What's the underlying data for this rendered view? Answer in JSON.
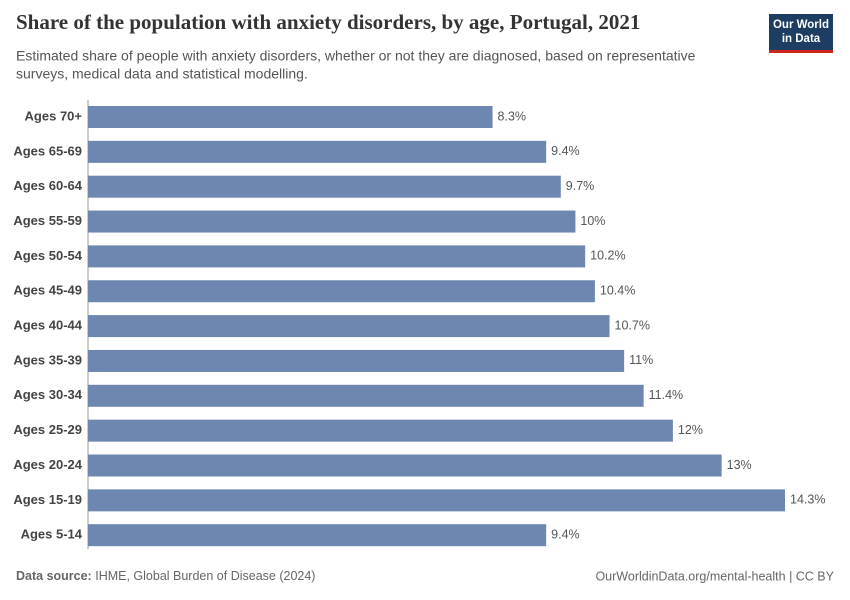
{
  "chart_data": {
    "type": "bar",
    "orientation": "horizontal",
    "title": "Share of the population with anxiety disorders, by age, Portugal, 2021",
    "subtitle": [
      "Estimated share of people with anxiety disorders, whether or not they are diagnosed, based on representative",
      "surveys, medical data and statistical modelling."
    ],
    "categories": [
      "Ages 70+",
      "Ages 65-69",
      "Ages 60-64",
      "Ages 55-59",
      "Ages 50-54",
      "Ages 45-49",
      "Ages 40-44",
      "Ages 35-39",
      "Ages 30-34",
      "Ages 25-29",
      "Ages 20-24",
      "Ages 15-19",
      "Ages 5-14"
    ],
    "values": [
      8.3,
      9.4,
      9.7,
      10,
      10.2,
      10.4,
      10.7,
      11,
      11.4,
      12,
      13,
      14.3,
      9.4
    ],
    "value_labels": [
      "8.3%",
      "9.4%",
      "9.7%",
      "10%",
      "10.2%",
      "10.4%",
      "10.7%",
      "11%",
      "11.4%",
      "12%",
      "13%",
      "14.3%",
      "9.4%"
    ],
    "color": "#6d87b0",
    "logo": [
      "Our World",
      "in Data"
    ],
    "source_label": "Data source:",
    "source": "IHME, Global Burden of Disease (2024)",
    "footer_right": "OurWorldinData.org/mental-health | CC BY"
  }
}
